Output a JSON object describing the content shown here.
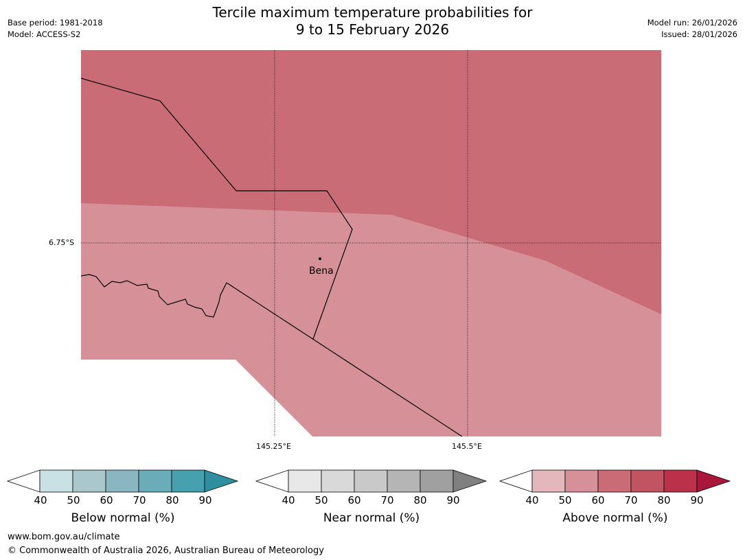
{
  "title_line1": "Tercile maximum temperature probabilities for",
  "title_line2": "9 to 15 February 2026",
  "meta_left": [
    "Base period: 1981-2018",
    "Model: ACCESS-S2"
  ],
  "meta_right": [
    "Model run: 26/01/2026",
    "Issued: 28/01/2026"
  ],
  "map": {
    "latitude_labels": [
      "6.75°S"
    ],
    "longitude_labels": [
      "145.25°E",
      "145.5°E"
    ],
    "place": "Bena",
    "colors": {
      "band_60_70": "#ca6c75",
      "band_50_60": "#d69097",
      "border": "#000000",
      "grid": "#000000"
    }
  },
  "legends": [
    {
      "title": "Below normal (%)",
      "ticks": [
        "40",
        "50",
        "60",
        "70",
        "80",
        "90"
      ],
      "colors": [
        "#ffffff",
        "#c9e1e5",
        "#a9c7cc",
        "#8ab6c2",
        "#6bacb9",
        "#46a0ae",
        "#2f8f9f"
      ]
    },
    {
      "title": "Near normal (%)",
      "ticks": [
        "40",
        "50",
        "60",
        "70",
        "80",
        "90"
      ],
      "colors": [
        "#ffffff",
        "#e8e8e8",
        "#d9d9d9",
        "#c9c9c9",
        "#b5b5b5",
        "#a0a0a0",
        "#808080"
      ]
    },
    {
      "title": "Above normal (%)",
      "ticks": [
        "40",
        "50",
        "60",
        "70",
        "80",
        "90"
      ],
      "colors": [
        "#ffffff",
        "#e3b7bb",
        "#d69097",
        "#ca6c75",
        "#c25462",
        "#bb314a",
        "#a8163a"
      ]
    }
  ],
  "footer": {
    "url": "www.bom.gov.au/climate",
    "copyright": "© Commonwealth of Australia 2026, Australian Bureau of Meteorology"
  }
}
